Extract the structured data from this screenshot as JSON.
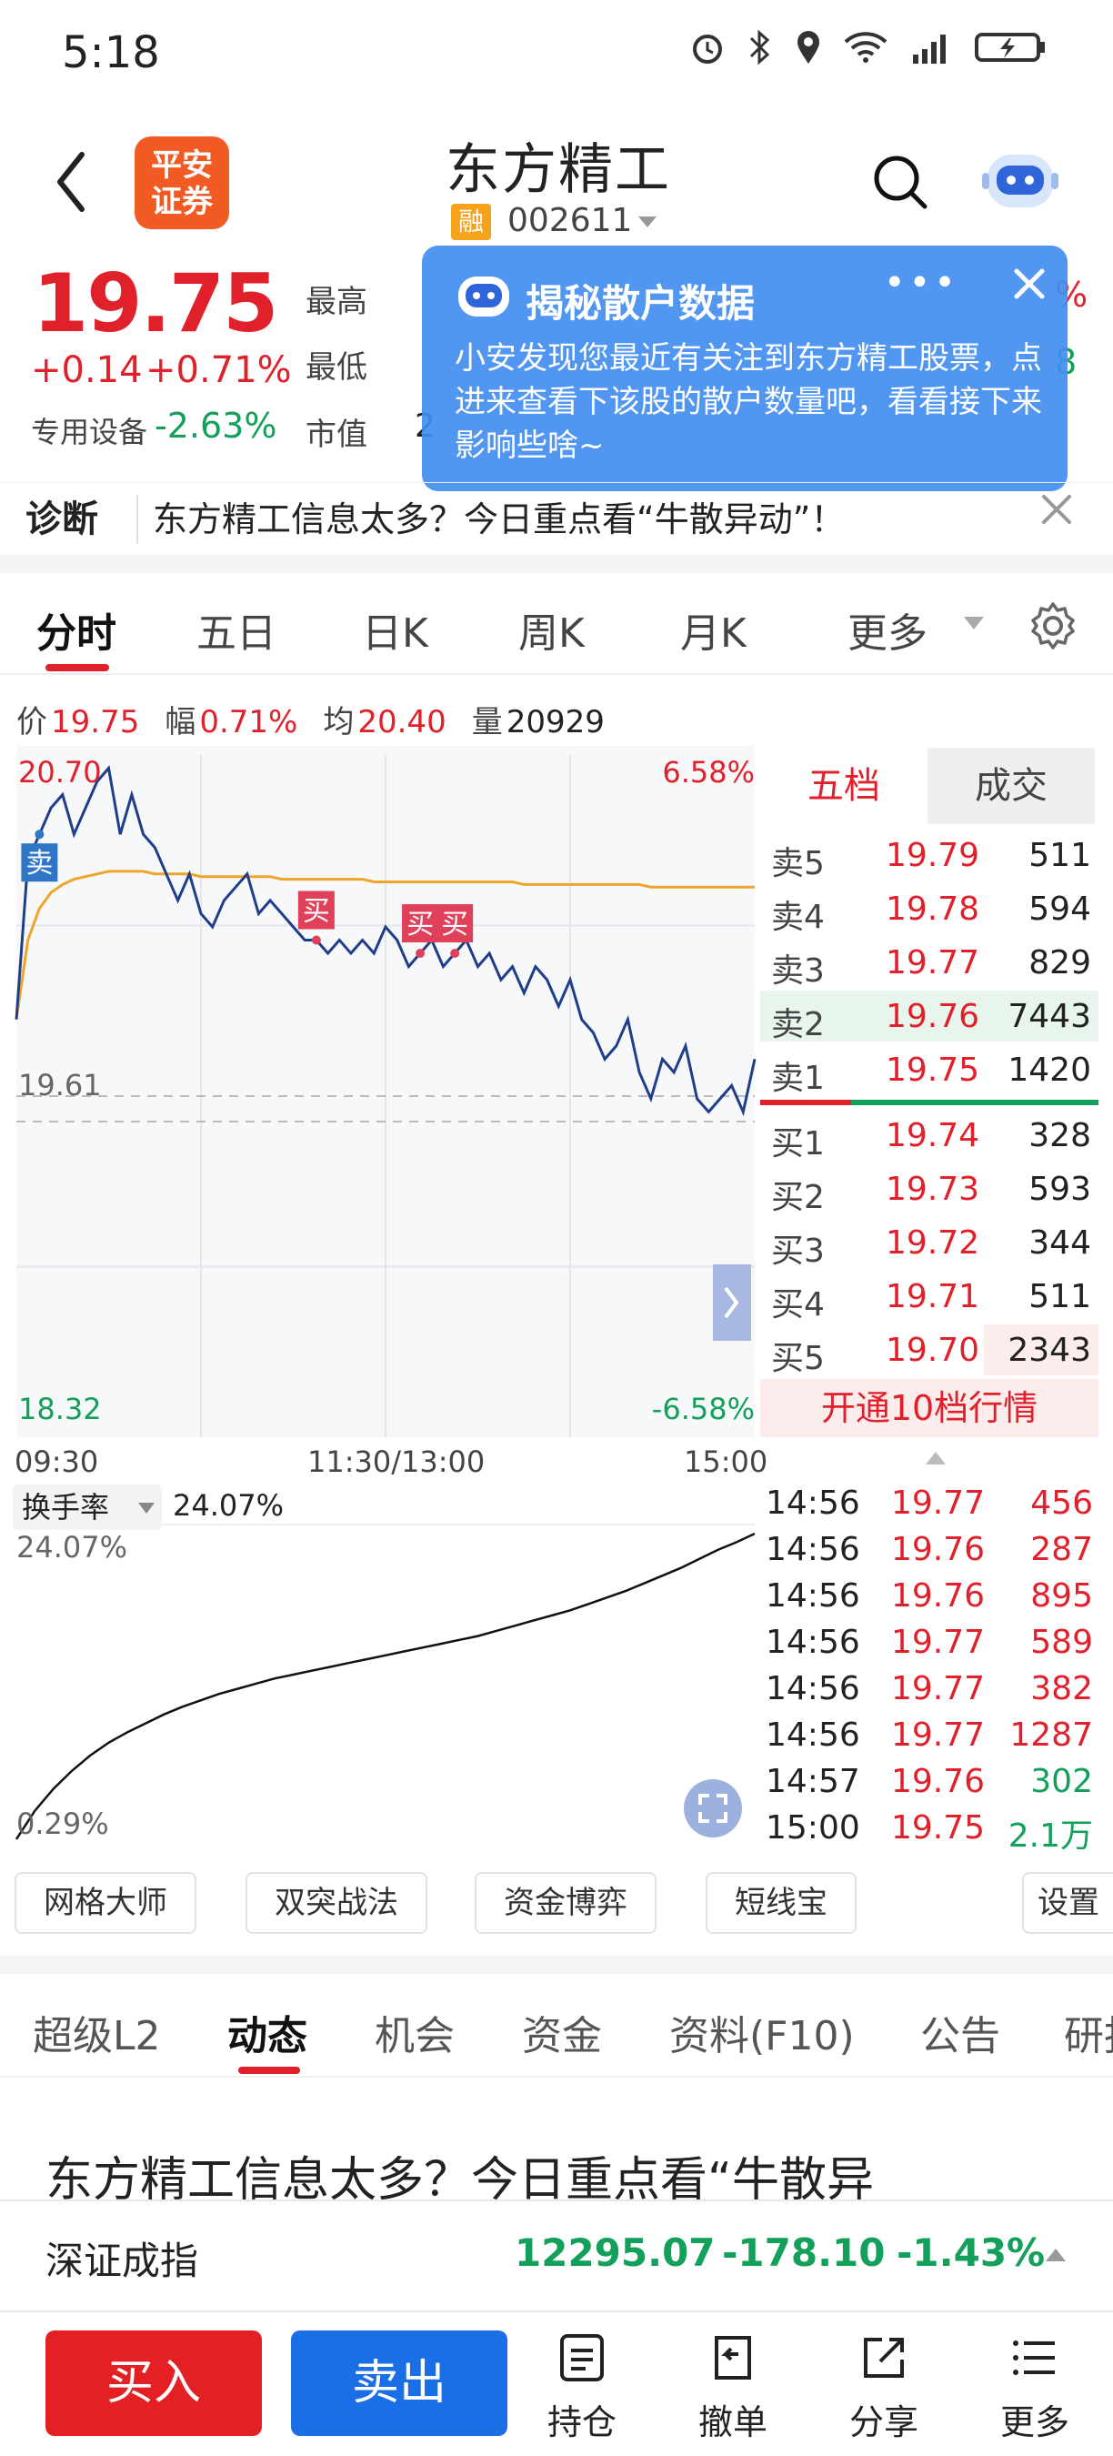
{
  "status_bar": {
    "time": "5:18"
  },
  "header": {
    "broker_logo": "平安\n证券",
    "stock_name": "东方精工",
    "rong_badge": "融",
    "stock_code": "002611"
  },
  "quote": {
    "price": "19.75",
    "change_abs": "+0.14",
    "change_pct": "+0.71%",
    "sector_label": "专用设备",
    "sector_change": "-2.63%",
    "high_label": "最高",
    "low_label": "最低",
    "mcap_label": "市值",
    "mcap_fragment": "2",
    "right_frag_1": "%",
    "right_frag_2": "8"
  },
  "popup": {
    "title": "揭秘散户数据",
    "dots": "•••",
    "body": "小安发现您最近有关注到东方精工股票，点进来查看下该股的散户数量吧，看看接下来影响些啥~"
  },
  "diagnosis": {
    "label": "诊断",
    "text": "东方精工信息太多？今日重点看“牛散异动”！"
  },
  "period_tabs": [
    "分时",
    "五日",
    "日K",
    "周K",
    "月K",
    "更多"
  ],
  "info_line": {
    "price_label": "价",
    "price": "19.75",
    "amp_label": "幅",
    "amp": "0.71%",
    "avg_label": "均",
    "avg": "20.40",
    "vol_label": "量",
    "vol": "20929"
  },
  "chart_data": {
    "type": "line",
    "y_top_label": "20.70",
    "y_top_pct": "6.58%",
    "y_mid_label": "19.61",
    "y_bottom_label": "18.32",
    "y_bottom_pct": "-6.58%",
    "ylim": [
      18.32,
      20.9
    ],
    "prev_close": 19.61,
    "x_labels": [
      "09:30",
      "11:30/13:00",
      "15:00"
    ],
    "series": [
      {
        "values": [
          19.9,
          20.5,
          20.6,
          20.7,
          20.75,
          20.6,
          20.7,
          20.8,
          20.85,
          20.6,
          20.75,
          20.6,
          20.55,
          20.45,
          20.35,
          20.45,
          20.3,
          20.25,
          20.35,
          20.4,
          20.45,
          20.3,
          20.35,
          20.3,
          20.25,
          20.2,
          20.2,
          20.15,
          20.2,
          20.15,
          20.2,
          20.15,
          20.25,
          20.2,
          20.1,
          20.15,
          20.2,
          20.1,
          20.15,
          20.2,
          20.1,
          20.15,
          20.05,
          20.1,
          20.0,
          20.1,
          20.05,
          19.95,
          20.05,
          19.9,
          19.85,
          19.75,
          19.8,
          19.9,
          19.7,
          19.6,
          19.75,
          19.7,
          19.8,
          19.6,
          19.55,
          19.6,
          19.65,
          19.55,
          19.75
        ]
      },
      {
        "values": [
          19.9,
          20.2,
          20.32,
          20.38,
          20.41,
          20.43,
          20.44,
          20.45,
          20.46,
          20.46,
          20.46,
          20.46,
          20.45,
          20.45,
          20.45,
          20.45,
          20.44,
          20.44,
          20.44,
          20.44,
          20.44,
          20.44,
          20.44,
          20.43,
          20.43,
          20.43,
          20.43,
          20.43,
          20.43,
          20.43,
          20.43,
          20.42,
          20.42,
          20.42,
          20.42,
          20.42,
          20.42,
          20.42,
          20.42,
          20.42,
          20.42,
          20.42,
          20.42,
          20.42,
          20.41,
          20.41,
          20.41,
          20.41,
          20.41,
          20.41,
          20.41,
          20.41,
          20.41,
          20.41,
          20.41,
          20.4,
          20.4,
          20.4,
          20.4,
          20.4,
          20.4,
          20.4,
          20.4,
          20.4,
          20.4
        ]
      }
    ],
    "markers": [
      {
        "label": "卖",
        "index": 2
      },
      {
        "label": "买",
        "index": 26
      },
      {
        "label": "买",
        "index": 35
      },
      {
        "label": "买",
        "index": 38
      }
    ]
  },
  "order_book": {
    "tab_5": "五档",
    "tab_deal": "成交",
    "asks": [
      {
        "label": "卖5",
        "price": "19.79",
        "vol": "511"
      },
      {
        "label": "卖4",
        "price": "19.78",
        "vol": "594"
      },
      {
        "label": "卖3",
        "price": "19.77",
        "vol": "829"
      },
      {
        "label": "卖2",
        "price": "19.76",
        "vol": "7443"
      },
      {
        "label": "卖1",
        "price": "19.75",
        "vol": "1420"
      }
    ],
    "bids": [
      {
        "label": "买1",
        "price": "19.74",
        "vol": "328"
      },
      {
        "label": "买2",
        "price": "19.73",
        "vol": "593"
      },
      {
        "label": "买3",
        "price": "19.72",
        "vol": "344"
      },
      {
        "label": "买4",
        "price": "19.71",
        "vol": "511"
      },
      {
        "label": "买5",
        "price": "19.70",
        "vol": "2343"
      }
    ],
    "upgrade": "开通10档行情"
  },
  "turnover": {
    "selector": "换手率",
    "value": "24.07%",
    "max_label": "24.07%",
    "min_label": "0.29%",
    "series": [
      0.29,
      2.5,
      4.2,
      5.6,
      6.8,
      7.8,
      8.6,
      9.3,
      10.0,
      10.6,
      11.1,
      11.6,
      12.0,
      12.4,
      12.8,
      13.1,
      13.4,
      13.7,
      14.0,
      14.3,
      14.6,
      14.9,
      15.2,
      15.5,
      15.8,
      16.1,
      16.5,
      16.9,
      17.3,
      17.7,
      18.1,
      18.6,
      19.1,
      19.6,
      20.2,
      20.8,
      21.4,
      22.1,
      22.8,
      23.4,
      24.07
    ]
  },
  "ticks": [
    {
      "time": "14:56",
      "price": "19.77",
      "vol": "456",
      "dir": "up"
    },
    {
      "time": "14:56",
      "price": "19.76",
      "vol": "287",
      "dir": "up"
    },
    {
      "time": "14:56",
      "price": "19.76",
      "vol": "895",
      "dir": "up"
    },
    {
      "time": "14:56",
      "price": "19.77",
      "vol": "589",
      "dir": "up"
    },
    {
      "time": "14:56",
      "price": "19.77",
      "vol": "382",
      "dir": "up"
    },
    {
      "time": "14:56",
      "price": "19.77",
      "vol": "1287",
      "dir": "up"
    },
    {
      "time": "14:57",
      "price": "19.76",
      "vol": "302",
      "dir": "down"
    },
    {
      "time": "15:00",
      "price": "19.75",
      "vol": "2.1万",
      "dir": "down"
    }
  ],
  "tools": [
    "网格大师",
    "双突战法",
    "资金博弈",
    "短线宝",
    "设置"
  ],
  "content_tabs": [
    "超级L2",
    "动态",
    "机会",
    "资金",
    "资料(F10)",
    "公告",
    "研报"
  ],
  "article_title": "东方精工信息太多？今日重点看“牛散异",
  "index_bar": {
    "name": "深证成指",
    "value": "12295.07",
    "change": "-178.10",
    "pct": "-1.43%"
  },
  "actions": {
    "buy": "买入",
    "sell": "卖出",
    "hold": "持仓",
    "cancel": "撤单",
    "share": "分享",
    "more": "更多"
  },
  "colors": {
    "up": "#e0202b",
    "down": "#12a05a",
    "price_line": "#1f3e8a",
    "avg_line": "#f0a52a",
    "popup": "#428ef0"
  }
}
